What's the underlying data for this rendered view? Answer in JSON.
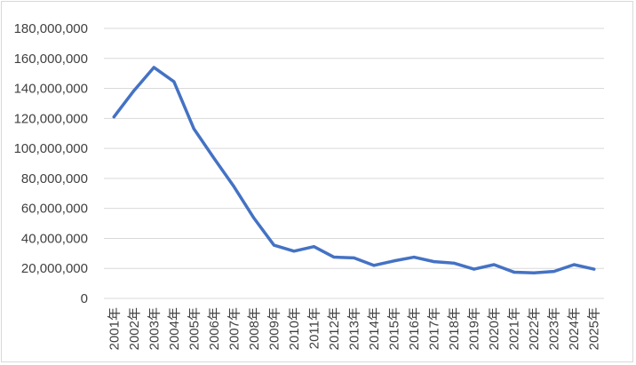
{
  "chart_data": {
    "type": "line",
    "title": "",
    "xlabel": "",
    "ylabel": "",
    "categories": [
      "2001年",
      "2002年",
      "2003年",
      "2004年",
      "2005年",
      "2006年",
      "2007年",
      "2008年",
      "2009年",
      "2010年",
      "2011年",
      "2012年",
      "2013年",
      "2014年",
      "2015年",
      "2016年",
      "2017年",
      "2018年",
      "2019年",
      "2020年",
      "2021年",
      "2022年",
      "2023年",
      "2024年",
      "2025年"
    ],
    "series": [
      {
        "values": [
          121000000,
          138500000,
          154000000,
          144500000,
          113000000,
          93500000,
          74500000,
          53500000,
          35500000,
          31500000,
          34500000,
          27500000,
          27000000,
          22000000,
          25000000,
          27500000,
          24500000,
          23500000,
          19500000,
          22500000,
          17500000,
          17000000,
          18000000,
          22500000,
          19500000
        ],
        "color": "#4472c4"
      }
    ],
    "yticks": [
      "0",
      "20,000,000",
      "40,000,000",
      "60,000,000",
      "80,000,000",
      "100,000,000",
      "120,000,000",
      "140,000,000",
      "160,000,000",
      "180,000,000"
    ],
    "ylim": [
      0,
      180000000
    ],
    "grid": true,
    "legend": "none"
  }
}
